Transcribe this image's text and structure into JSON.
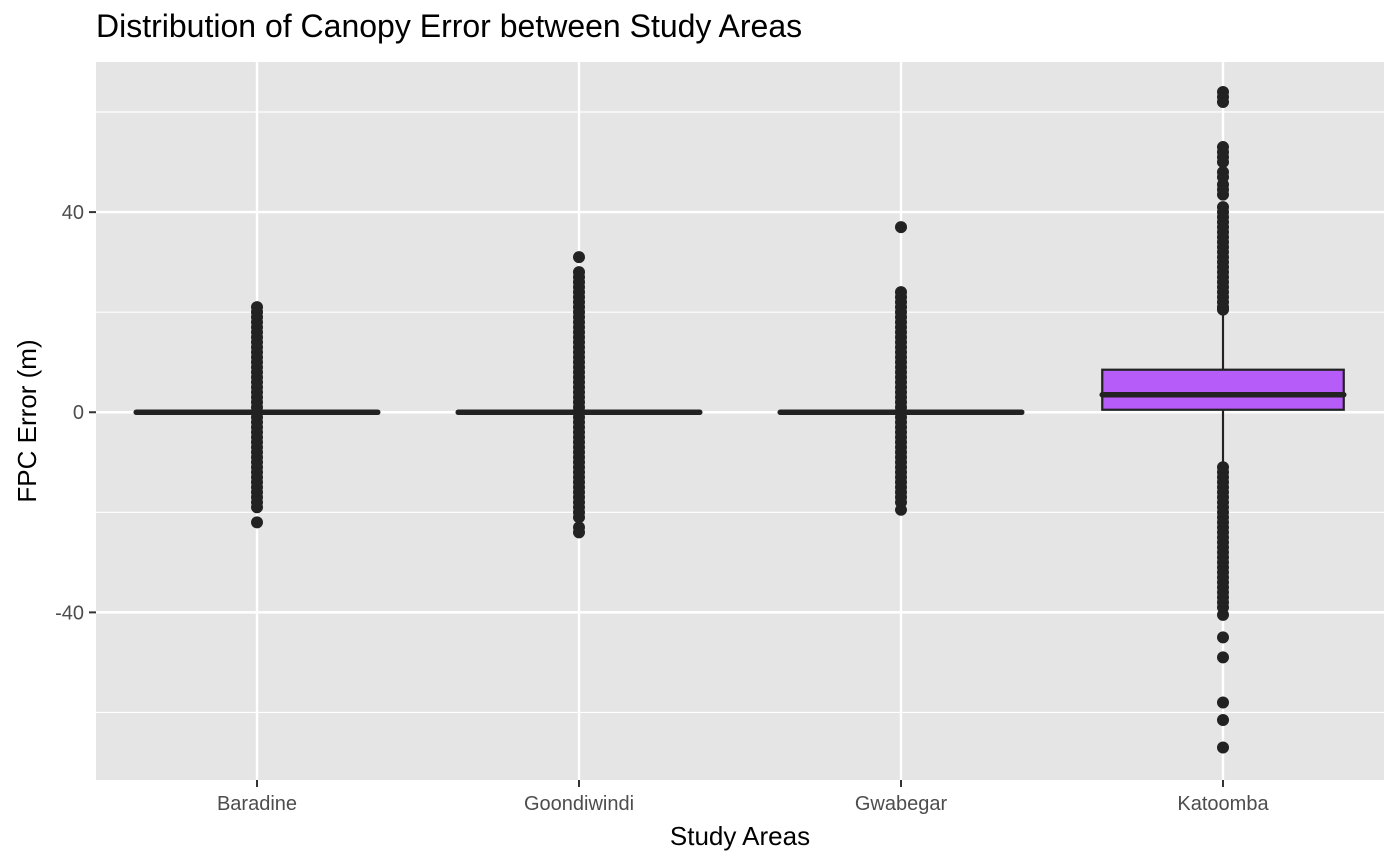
{
  "chart_data": {
    "type": "boxplot",
    "title": "Distribution of Canopy Error between Study Areas",
    "xlabel": "Study Areas",
    "ylabel": "FPC Error (m)",
    "ylim": [
      -73.5,
      70
    ],
    "yticks": [
      -40,
      0,
      40
    ],
    "ytick_labels": [
      "-40",
      "0",
      "40"
    ],
    "grid": true,
    "box_fill": "#b55cf9",
    "categories": [
      "Baradine",
      "Goondiwindi",
      "Gwabegar",
      "Katoomba"
    ],
    "boxes": [
      {
        "category": "Baradine",
        "fill": "#b55cf9",
        "q1": 0,
        "median": 0,
        "q3": 0,
        "whisker_low": 0,
        "whisker_high": 0,
        "outliers": [
          -22,
          -19,
          -18,
          -17,
          -16,
          -15,
          -14,
          -13,
          -12,
          -11,
          -10,
          -9,
          -8,
          -7,
          -6,
          -5,
          -4,
          -3,
          -2,
          -1,
          1,
          2,
          3,
          4,
          5,
          6,
          7,
          8,
          9,
          10,
          11,
          12,
          13,
          14,
          15,
          16,
          17,
          18,
          19,
          20,
          21
        ]
      },
      {
        "category": "Goondiwindi",
        "fill": "#b55cf9",
        "q1": 0,
        "median": 0,
        "q3": 0,
        "whisker_low": 0,
        "whisker_high": 0,
        "outliers": [
          -24,
          -23,
          -21,
          -20,
          -19,
          -18,
          -17,
          -16,
          -15,
          -14,
          -13,
          -12,
          -11,
          -10,
          -9,
          -8,
          -7,
          -6,
          -5,
          -4,
          -3,
          -2,
          -1,
          1,
          2,
          3,
          4,
          5,
          6,
          7,
          8,
          9,
          10,
          11,
          12,
          13,
          14,
          15,
          16,
          17,
          18,
          19,
          20,
          21,
          22,
          23,
          24,
          25,
          26,
          27,
          28,
          31
        ]
      },
      {
        "category": "Gwabegar",
        "fill": "#b55cf9",
        "q1": 0,
        "median": 0,
        "q3": 0,
        "whisker_low": 0,
        "whisker_high": 0,
        "outliers": [
          -19.5,
          -18,
          -17,
          -16,
          -15,
          -14,
          -13,
          -12,
          -11,
          -10,
          -9,
          -8,
          -7,
          -6,
          -5,
          -4,
          -3,
          -2,
          -1,
          1,
          2,
          3,
          4,
          5,
          6,
          7,
          8,
          9,
          10,
          11,
          12,
          13,
          14,
          15,
          16,
          17,
          18,
          19,
          20,
          21,
          22,
          23,
          24,
          37
        ]
      },
      {
        "category": "Katoomba",
        "fill": "#b55cf9",
        "q1": 0.5,
        "median": 3.5,
        "q3": 8.5,
        "whisker_low": -10.5,
        "whisker_high": 20,
        "outliers": [
          -67,
          -61.5,
          -58,
          -49,
          -45,
          -40.5,
          -39,
          -38,
          -37,
          -36,
          -35,
          -34,
          -33,
          -32,
          -31,
          -30,
          -29,
          -28,
          -27,
          -26,
          -25,
          -24,
          -23,
          -22,
          -21,
          -20,
          -19,
          -18,
          -17,
          -16,
          -15,
          -14,
          -13,
          -12,
          -11,
          20.5,
          21,
          22,
          23,
          24,
          25,
          26,
          27,
          28,
          29,
          30,
          31,
          32,
          33,
          34,
          35,
          36,
          37,
          38,
          39,
          40,
          41,
          43.5,
          44.5,
          45.5,
          47,
          48,
          50,
          51,
          52,
          53,
          62,
          63,
          64
        ]
      }
    ]
  }
}
